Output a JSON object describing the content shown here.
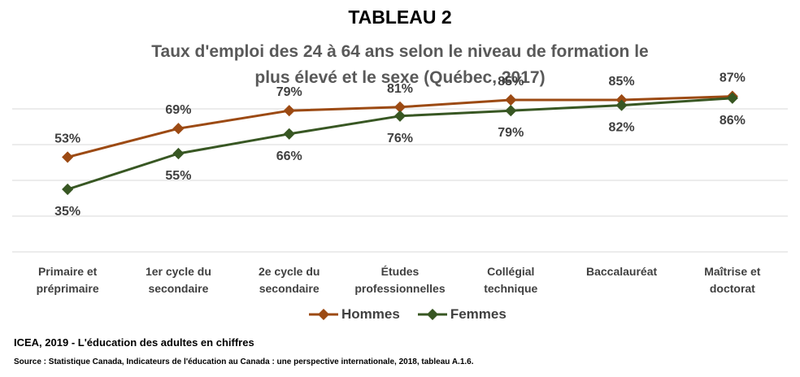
{
  "header": {
    "title": "TABLEAU 2",
    "subtitle": "Taux d'emploi des 24 à 64 ans selon le niveau de formation le plus élevé et le sexe (Québec, 2017)"
  },
  "colors": {
    "hommes": "#9C4A13",
    "femmes": "#385723",
    "grid": "#D9D9D9",
    "text": "#404040"
  },
  "chart_data": {
    "type": "line",
    "title": "TABLEAU 2",
    "subtitle": "Taux d'emploi des 24 à 64 ans selon le niveau de formation le plus élevé et le sexe (Québec, 2017)",
    "categories": [
      [
        "Primaire et",
        "préprimaire"
      ],
      [
        "1er cycle du",
        "secondaire"
      ],
      [
        "2e cycle du",
        "secondaire"
      ],
      [
        "Études",
        "professionnelles"
      ],
      [
        "Collégial",
        "technique"
      ],
      [
        "Baccalauréat"
      ],
      [
        "Maîtrise et",
        "doctorat"
      ]
    ],
    "series": [
      {
        "name": "Hommes",
        "values": [
          53,
          69,
          79,
          81,
          85,
          85,
          87
        ],
        "labels": [
          "53%",
          "69%",
          "79%",
          "81%",
          "85%",
          "85%",
          "87%"
        ],
        "label_position": "above"
      },
      {
        "name": "Femmes",
        "values": [
          35,
          55,
          66,
          76,
          79,
          82,
          86
        ],
        "labels": [
          "35%",
          "55%",
          "66%",
          "76%",
          "79%",
          "82%",
          "86%"
        ],
        "label_position": "below"
      }
    ],
    "ylim": [
      0,
      100
    ],
    "grid": true,
    "legend": "bottom",
    "xlabel": "",
    "ylabel": ""
  },
  "legend": {
    "hommes": "Hommes",
    "femmes": "Femmes"
  },
  "footer": {
    "main": "ICEA, 2019 - L'éducation des adultes en chiffres",
    "source": "Source : Statistique Canada,  Indicateurs de l'éducation au Canada : une perspective internationale,  2018, tableau A.1.6."
  }
}
